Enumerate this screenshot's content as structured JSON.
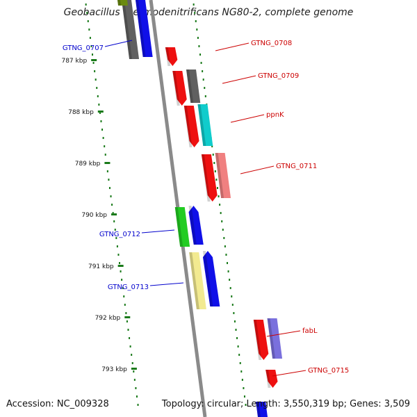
{
  "title": "Geobacillus thermodenitrificans NG80-2, complete genome",
  "footer": {
    "accession": "Accession: NC_009328",
    "info": "Topology: circular; Length: 3,550,319 bp; Genes: 3,509"
  },
  "colors": {
    "backbone": "#8a8a8a",
    "ticks": "#1a7a1a",
    "label_left": "#0000cc",
    "label_right": "#cc0000"
  },
  "axis_labels": [
    "787 kbp",
    "788 kbp",
    "789 kbp",
    "790 kbp",
    "791 kbp",
    "792 kbp",
    "793 kbp"
  ],
  "genes_left": [
    {
      "label": "GTNG_0707",
      "color": "#0000cc"
    },
    {
      "label": "GTNG_0712",
      "color": "#0000cc"
    },
    {
      "label": "GTNG_0713",
      "color": "#0000cc"
    }
  ],
  "genes_right": [
    {
      "label": "GTNG_0708",
      "color": "#cc0000"
    },
    {
      "label": "GTNG_0709",
      "color": "#cc0000"
    },
    {
      "label": "ppnK",
      "color": "#cc0000"
    },
    {
      "label": "GTNG_0711",
      "color": "#cc0000"
    },
    {
      "label": "fabL",
      "color": "#cc0000"
    },
    {
      "label": "GTNG_0715",
      "color": "#cc0000"
    }
  ]
}
